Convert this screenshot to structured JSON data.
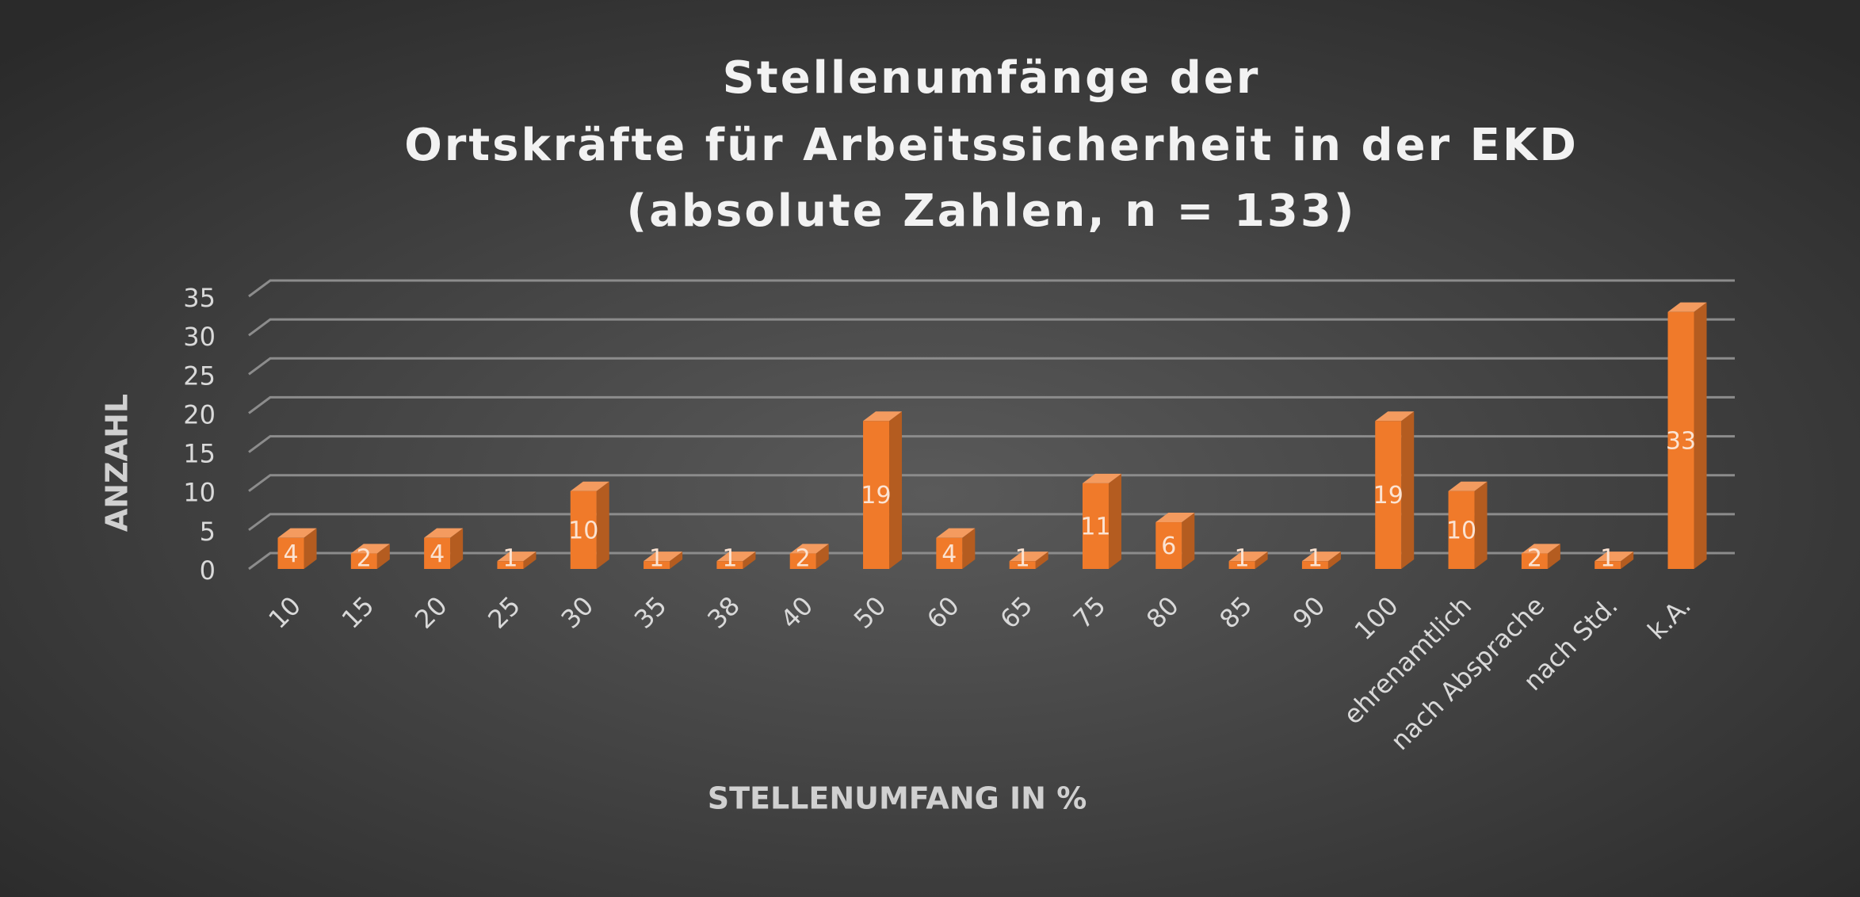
{
  "chart_data": {
    "type": "bar3d",
    "title": [
      "Stellenumfänge der",
      "Ortskräfte für Arbeitssicherheit in der EKD",
      "(absolute Zahlen, n = 133)"
    ],
    "x_label": "STELLENUMFANG IN %",
    "y_label": "ANZAHL",
    "categories": [
      "10",
      "15",
      "20",
      "25",
      "30",
      "35",
      "38",
      "40",
      "50",
      "60",
      "65",
      "75",
      "80",
      "85",
      "90",
      "100",
      "ehrenamtlich",
      "nach Absprache",
      "nach Std.",
      "k.A."
    ],
    "values": [
      4,
      2,
      4,
      1,
      10,
      1,
      1,
      2,
      19,
      4,
      1,
      11,
      6,
      1,
      1,
      19,
      10,
      2,
      1,
      33
    ],
    "color": "#f07a2a",
    "ylim": [
      0,
      35
    ],
    "yticks": [
      0,
      5,
      10,
      15,
      20,
      25,
      30,
      35
    ],
    "grid": true
  }
}
